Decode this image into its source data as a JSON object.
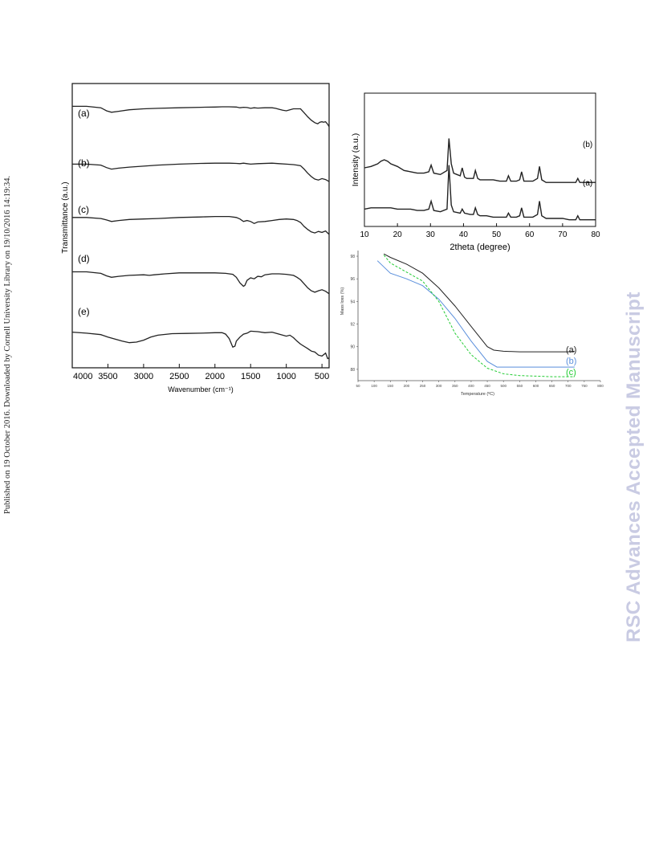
{
  "page": {
    "side_note": "Published on 19 October 2016. Downloaded by Cornell University Library on 19/10/2016 14:19:34.",
    "watermark": "RSC Advances Accepted Manuscript"
  },
  "chart_data": [
    {
      "type": "line",
      "id": "ftir",
      "xlabel": "Wavenumber (cm⁻¹)",
      "ylabel": "Transmittance (a.u.)",
      "xlim": [
        4000,
        400
      ],
      "x_reversed": true,
      "tick_labels": [
        "4000",
        "3500",
        "3000",
        "2500",
        "2000",
        "1500",
        "1000",
        "500"
      ],
      "ticks": [
        4000,
        3500,
        3000,
        2500,
        2000,
        1500,
        1000,
        500
      ],
      "y_units": "arbitrary offset",
      "color": "#222222",
      "series": [
        {
          "name": "(a)",
          "x": [
            4000,
            3800,
            3600,
            3520,
            3450,
            3350,
            3200,
            3000,
            2800,
            2500,
            2200,
            2000,
            1900,
            1800,
            1700,
            1650,
            1600,
            1550,
            1500,
            1450,
            1400,
            1300,
            1200,
            1150,
            1100,
            1050,
            1000,
            950,
            900,
            850,
            800,
            750,
            700,
            650,
            600,
            560,
            530,
            500,
            480,
            450,
            420,
            400
          ],
          "y": [
            0.91,
            0.91,
            0.88,
            0.82,
            0.79,
            0.81,
            0.84,
            0.86,
            0.87,
            0.88,
            0.89,
            0.895,
            0.9,
            0.9,
            0.895,
            0.88,
            0.89,
            0.885,
            0.87,
            0.88,
            0.875,
            0.88,
            0.88,
            0.87,
            0.85,
            0.83,
            0.82,
            0.84,
            0.86,
            0.86,
            0.86,
            0.78,
            0.7,
            0.63,
            0.58,
            0.56,
            0.59,
            0.6,
            0.59,
            0.6,
            0.55,
            0.5
          ]
        },
        {
          "name": "(b)",
          "x": [
            4000,
            3800,
            3600,
            3520,
            3450,
            3350,
            3200,
            3000,
            2800,
            2500,
            2200,
            2000,
            1800,
            1700,
            1650,
            1600,
            1550,
            1500,
            1400,
            1200,
            1100,
            1000,
            900,
            850,
            800,
            750,
            700,
            650,
            600,
            550,
            500,
            450,
            400
          ],
          "y": [
            0.7,
            0.7,
            0.68,
            0.63,
            0.6,
            0.62,
            0.64,
            0.66,
            0.68,
            0.7,
            0.715,
            0.72,
            0.72,
            0.715,
            0.71,
            0.72,
            0.71,
            0.7,
            0.71,
            0.72,
            0.71,
            0.7,
            0.69,
            0.68,
            0.67,
            0.6,
            0.52,
            0.45,
            0.4,
            0.38,
            0.41,
            0.39,
            0.35
          ]
        },
        {
          "name": "(c)",
          "x": [
            4000,
            3800,
            3600,
            3520,
            3450,
            3350,
            3200,
            3000,
            2800,
            2500,
            2200,
            2000,
            1800,
            1700,
            1650,
            1600,
            1550,
            1500,
            1450,
            1400,
            1300,
            1200,
            1100,
            1000,
            900,
            850,
            800,
            750,
            700,
            650,
            600,
            550,
            500,
            450,
            400
          ],
          "y": [
            0.58,
            0.58,
            0.56,
            0.53,
            0.5,
            0.52,
            0.54,
            0.55,
            0.56,
            0.58,
            0.59,
            0.6,
            0.6,
            0.58,
            0.55,
            0.5,
            0.52,
            0.5,
            0.46,
            0.49,
            0.5,
            0.52,
            0.54,
            0.55,
            0.54,
            0.52,
            0.48,
            0.4,
            0.34,
            0.29,
            0.27,
            0.3,
            0.28,
            0.31,
            0.24
          ]
        },
        {
          "name": "(d)",
          "x": [
            4000,
            3800,
            3600,
            3520,
            3450,
            3350,
            3200,
            3000,
            2920,
            2850,
            2700,
            2500,
            2200,
            2000,
            1850,
            1750,
            1700,
            1650,
            1600,
            1580,
            1550,
            1500,
            1450,
            1400,
            1350,
            1300,
            1200,
            1100,
            1000,
            900,
            850,
            800,
            750,
            700,
            650,
            600,
            550,
            500,
            450,
            400
          ],
          "y": [
            0.44,
            0.44,
            0.41,
            0.36,
            0.33,
            0.35,
            0.37,
            0.38,
            0.37,
            0.38,
            0.4,
            0.42,
            0.42,
            0.42,
            0.41,
            0.39,
            0.33,
            0.22,
            0.15,
            0.17,
            0.27,
            0.32,
            0.3,
            0.35,
            0.34,
            0.38,
            0.4,
            0.4,
            0.39,
            0.37,
            0.33,
            0.28,
            0.2,
            0.12,
            0.06,
            0.03,
            0.06,
            0.08,
            0.05,
            0.0
          ]
        },
        {
          "name": "(e)",
          "x": [
            4000,
            3800,
            3600,
            3500,
            3400,
            3300,
            3200,
            3100,
            3000,
            2900,
            2800,
            2600,
            2400,
            2200,
            2000,
            1900,
            1850,
            1800,
            1750,
            1720,
            1700,
            1650,
            1600,
            1550,
            1500,
            1400,
            1300,
            1200,
            1100,
            1000,
            950,
            900,
            850,
            800,
            700,
            650,
            600,
            550,
            500,
            450,
            420,
            400
          ],
          "y": [
            0.18,
            0.16,
            0.13,
            0.08,
            0.04,
            0.0,
            -0.03,
            -0.02,
            0.02,
            0.08,
            0.12,
            0.15,
            0.155,
            0.16,
            0.17,
            0.17,
            0.14,
            0.05,
            -0.12,
            -0.1,
            0.0,
            0.08,
            0.14,
            0.16,
            0.2,
            0.19,
            0.17,
            0.18,
            0.14,
            0.1,
            0.12,
            0.07,
            0.0,
            -0.06,
            -0.15,
            -0.2,
            -0.22,
            -0.28,
            -0.3,
            -0.24,
            -0.35,
            -0.34
          ]
        }
      ]
    },
    {
      "type": "line",
      "id": "xrd",
      "xlabel": "2theta (degree)",
      "ylabel": "Intensity (a.u.)",
      "xlim": [
        10,
        80
      ],
      "tick_labels": [
        "10",
        "20",
        "30",
        "40",
        "50",
        "60",
        "70",
        "80"
      ],
      "ticks": [
        10,
        20,
        30,
        40,
        50,
        60,
        70,
        80
      ],
      "ylim": [
        0,
        1
      ],
      "color": "#222222",
      "series": [
        {
          "name": "(b)",
          "x": [
            10,
            12,
            14,
            15,
            16,
            17,
            18,
            20,
            22,
            24,
            26,
            28,
            29.5,
            30.2,
            31,
            33,
            35,
            35.6,
            36.3,
            37,
            38,
            39,
            39.6,
            40.3,
            41,
            42,
            43,
            43.6,
            44.3,
            45,
            47,
            49,
            51,
            53,
            53.6,
            54.3,
            55,
            56,
            57,
            57.6,
            58.3,
            59,
            61,
            62.4,
            63,
            63.7,
            65,
            67,
            70,
            72,
            74,
            74.6,
            75.2,
            76,
            78,
            80
          ],
          "y": [
            0.44,
            0.45,
            0.47,
            0.49,
            0.5,
            0.49,
            0.47,
            0.45,
            0.42,
            0.41,
            0.4,
            0.4,
            0.41,
            0.46,
            0.4,
            0.39,
            0.42,
            0.66,
            0.47,
            0.4,
            0.39,
            0.38,
            0.44,
            0.37,
            0.36,
            0.36,
            0.36,
            0.42,
            0.36,
            0.35,
            0.35,
            0.35,
            0.34,
            0.34,
            0.38,
            0.34,
            0.34,
            0.34,
            0.35,
            0.41,
            0.34,
            0.34,
            0.34,
            0.36,
            0.45,
            0.35,
            0.33,
            0.33,
            0.33,
            0.33,
            0.33,
            0.36,
            0.33,
            0.33,
            0.33,
            0.33
          ]
        },
        {
          "name": "(a)",
          "x": [
            10,
            12,
            15,
            18,
            20,
            22,
            24,
            26,
            28,
            29.5,
            30.2,
            31,
            33,
            35,
            35.6,
            36.3,
            37,
            39,
            39.6,
            40.3,
            42,
            43,
            43.6,
            44.3,
            45,
            47,
            49,
            51,
            53,
            53.6,
            54.3,
            55,
            56,
            57,
            57.6,
            58.3,
            59,
            61,
            62.4,
            63,
            63.7,
            65,
            67,
            70,
            72,
            74,
            74.6,
            75.2,
            76,
            78,
            80
          ],
          "y": [
            0.13,
            0.14,
            0.14,
            0.14,
            0.13,
            0.13,
            0.13,
            0.12,
            0.12,
            0.13,
            0.19,
            0.12,
            0.11,
            0.13,
            0.46,
            0.16,
            0.11,
            0.1,
            0.13,
            0.1,
            0.09,
            0.09,
            0.14,
            0.09,
            0.08,
            0.08,
            0.07,
            0.07,
            0.07,
            0.1,
            0.07,
            0.07,
            0.07,
            0.08,
            0.14,
            0.07,
            0.07,
            0.07,
            0.09,
            0.19,
            0.08,
            0.06,
            0.06,
            0.06,
            0.05,
            0.05,
            0.08,
            0.05,
            0.05,
            0.05,
            0.05
          ]
        }
      ]
    },
    {
      "type": "line",
      "id": "tga",
      "xlabel": "Temperature (ºC)",
      "ylabel": "Mass loss (%)",
      "xlim": [
        50,
        800
      ],
      "ticks": [
        50,
        100,
        150,
        200,
        250,
        300,
        350,
        400,
        450,
        500,
        550,
        600,
        650,
        700,
        750,
        800
      ],
      "tick_labels": [
        "50",
        "100",
        "150",
        "200",
        "250",
        "300",
        "350",
        "400",
        "450",
        "500",
        "550",
        "600",
        "650",
        "700",
        "750",
        "800"
      ],
      "ylim": [
        87,
        98.5
      ],
      "yticks": [
        88,
        90,
        92,
        94,
        96,
        98
      ],
      "ytick_labels": [
        "88",
        "90",
        "92",
        "94",
        "96",
        "98"
      ],
      "series": [
        {
          "name": "(a)",
          "color": "#222222",
          "dash": "",
          "x": [
            130,
            150,
            200,
            250,
            300,
            350,
            400,
            450,
            470,
            500,
            550,
            600,
            650,
            700,
            720
          ],
          "y": [
            98.2,
            97.9,
            97.3,
            96.5,
            95.2,
            93.6,
            91.8,
            90.0,
            89.7,
            89.6,
            89.55,
            89.55,
            89.55,
            89.55,
            89.6
          ]
        },
        {
          "name": "(b)",
          "color": "#5a8fdc",
          "dash": "",
          "x": [
            110,
            150,
            200,
            250,
            300,
            350,
            400,
            450,
            480,
            500,
            550,
            600,
            650,
            700,
            720
          ],
          "y": [
            97.6,
            96.5,
            96.0,
            95.4,
            94.2,
            92.5,
            90.5,
            88.7,
            88.2,
            88.2,
            88.2,
            88.2,
            88.2,
            88.2,
            88.2
          ]
        },
        {
          "name": "(c)",
          "color": "#22cc33",
          "dash": "3,2",
          "x": [
            130,
            150,
            200,
            250,
            300,
            350,
            400,
            450,
            500,
            550,
            600,
            650,
            700,
            720
          ],
          "y": [
            98.1,
            97.4,
            96.6,
            95.8,
            94.0,
            91.2,
            89.3,
            88.1,
            87.6,
            87.45,
            87.4,
            87.35,
            87.35,
            87.35
          ]
        }
      ]
    }
  ]
}
